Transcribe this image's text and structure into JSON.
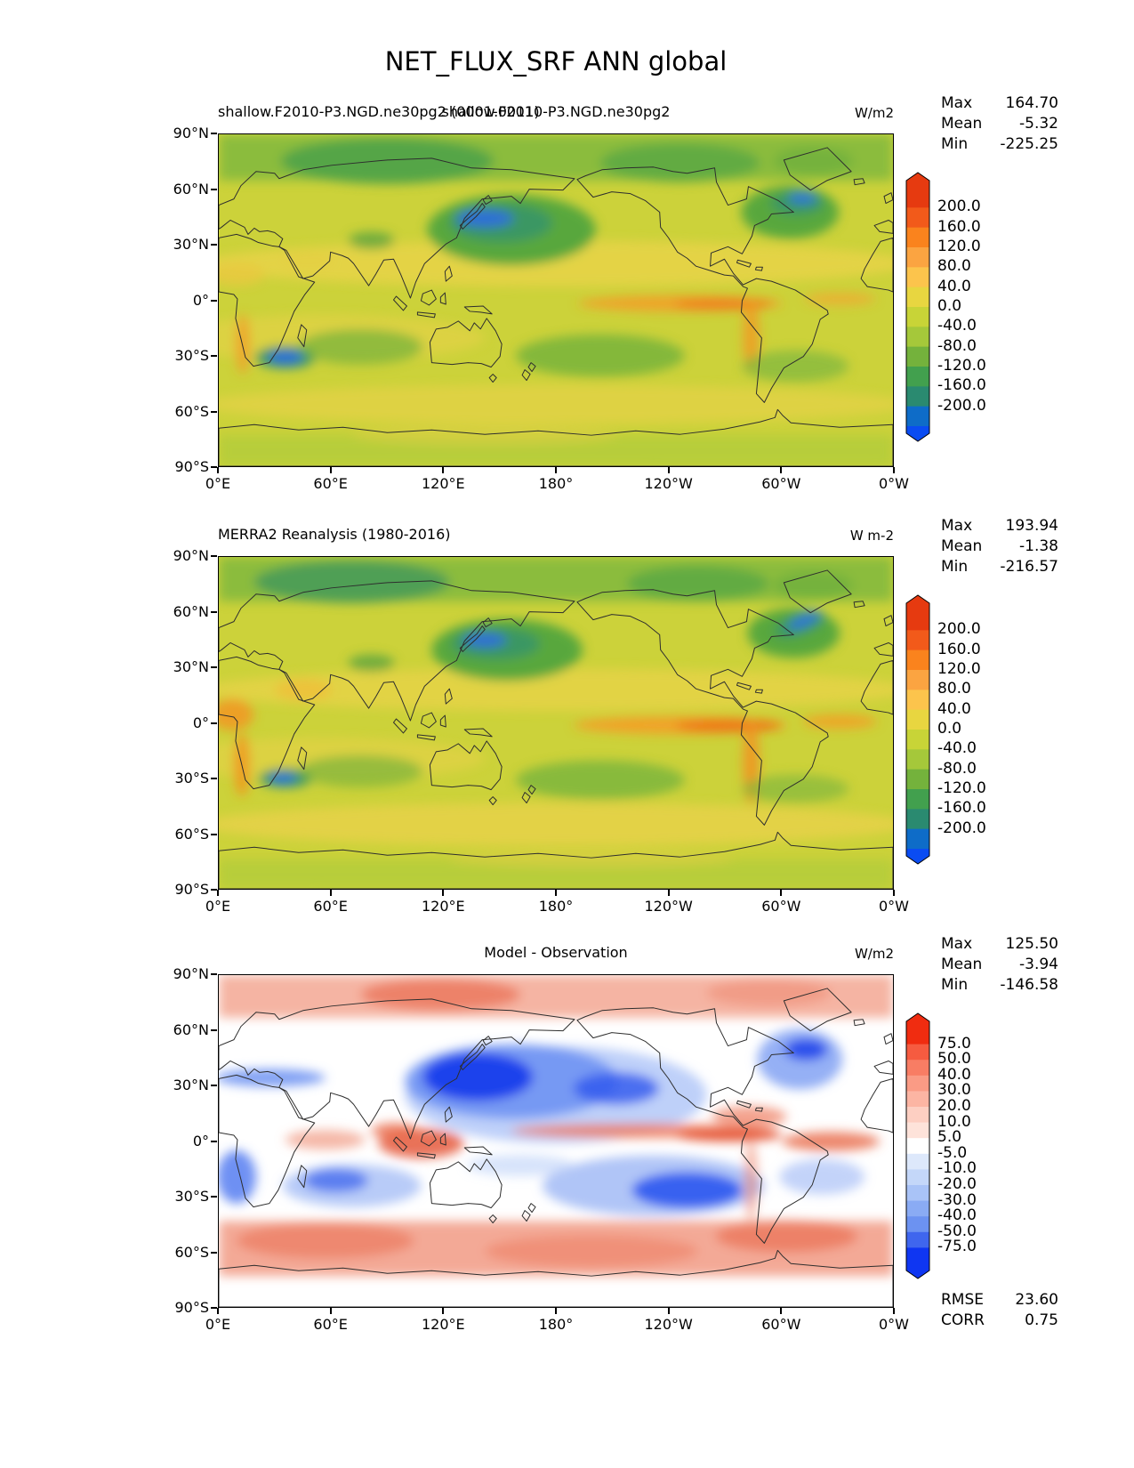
{
  "figure": {
    "background": "#ffffff"
  },
  "chart_data": {
    "type": "heatmap",
    "title": "NET_FLUX_SRF ANN global",
    "variable": "NET_FLUX_SRF",
    "season": "ANN",
    "region": "global",
    "projection": "equirectangular, longitudes 0E-360E",
    "xticks": [
      "0°E",
      "60°E",
      "120°E",
      "180°",
      "120°W",
      "60°W",
      "0°W"
    ],
    "yticks": [
      "90°N",
      "60°N",
      "30°N",
      "0°",
      "30°S",
      "60°S",
      "90°S"
    ],
    "xrange_deg": [
      0,
      360
    ],
    "yrange_deg": [
      90,
      -90
    ],
    "panels": [
      {
        "name": "model",
        "left_title": "shallow.F2010-P3.NGD.ne30pg2 (0001-0011)",
        "center_title": "shallow.F2010-P3.NGD.ne30pg2",
        "units": "W/m2",
        "stats": [
          {
            "label": "Max",
            "value": "164.70"
          },
          {
            "label": "Mean",
            "value": "-5.32"
          },
          {
            "label": "Min",
            "value": "-225.25"
          }
        ],
        "colorbar": {
          "tick_labels_top_to_bottom": [
            "200.0",
            "160.0",
            "120.0",
            "80.0",
            "40.0",
            "0.0",
            "-40.0",
            "-80.0",
            "-120.0",
            "-160.0",
            "-200.0"
          ],
          "band_colors_top_to_bottom": [
            "#e63a10",
            "#f25a1a",
            "#fa831d",
            "#fba441",
            "#fcc44c",
            "#e8d640",
            "#c8d437",
            "#a5c83a",
            "#74b23c",
            "#42a04e",
            "#2a8a70",
            "#0e6cc8"
          ],
          "arrow_top_color": "#e63a10",
          "arrow_bottom_color": "#0a4cf2"
        },
        "pattern_notes": "net surface flux: olive/yellow tropics-subtropics, green mid-high latitude oceans, blue minima in Kuroshio and Gulf Stream and Agulhas, orange maxima along eastern equatorial Pacific and Peru/Namibia coasts"
      },
      {
        "name": "observation",
        "left_title": "MERRA2 Reanalysis (1980-2016)",
        "center_title": "",
        "units": "W m-2",
        "stats": [
          {
            "label": "Max",
            "value": "193.94"
          },
          {
            "label": "Mean",
            "value": "-1.38"
          },
          {
            "label": "Min",
            "value": "-216.57"
          }
        ],
        "colorbar": {
          "tick_labels_top_to_bottom": [
            "200.0",
            "160.0",
            "120.0",
            "80.0",
            "40.0",
            "0.0",
            "-40.0",
            "-80.0",
            "-120.0",
            "-160.0",
            "-200.0"
          ],
          "band_colors_top_to_bottom": [
            "#e63a10",
            "#f25a1a",
            "#fa831d",
            "#fba441",
            "#fcc44c",
            "#e8d640",
            "#c8d437",
            "#a5c83a",
            "#74b23c",
            "#42a04e",
            "#2a8a70",
            "#0e6cc8"
          ],
          "arrow_top_color": "#e63a10",
          "arrow_bottom_color": "#0a4cf2"
        },
        "pattern_notes": "similar pattern to model: blue Kuroshio/Gulf Stream minima, orange equatorial east Pacific and African/South American west coast maxima, yellow subtropical bands"
      },
      {
        "name": "difference",
        "left_title": "",
        "center_title": "Model - Observation",
        "units": "W/m2",
        "stats": [
          {
            "label": "Max",
            "value": "125.50"
          },
          {
            "label": "Mean",
            "value": "-3.94"
          },
          {
            "label": "Min",
            "value": "-146.58"
          }
        ],
        "colorbar": {
          "tick_labels_top_to_bottom": [
            "75.0",
            "50.0",
            "40.0",
            "30.0",
            "20.0",
            "10.0",
            "5.0",
            "-5.0",
            "-10.0",
            "-20.0",
            "-30.0",
            "-40.0",
            "-50.0",
            "-75.0"
          ],
          "band_colors_top_to_bottom": [
            "#f02c10",
            "#f65b40",
            "#f87d64",
            "#fa9b85",
            "#fcb5a3",
            "#fdcfc2",
            "#fee3da",
            "#ffffff",
            "#dde8fb",
            "#c4d7f9",
            "#a9c3f7",
            "#8aabf4",
            "#6c92f1",
            "#3f66ee",
            "#0f36f2"
          ],
          "arrow_top_color": "#f02c10",
          "arrow_bottom_color": "#0f36f2"
        },
        "extra_stats": [
          {
            "label": "RMSE",
            "value": "23.60"
          },
          {
            "label": "CORR",
            "value": "0.75"
          }
        ],
        "pattern_notes": "white over land, strong blue bias North Pacific and subtropical South Pacific/South Indian and Namibia coast, red bias Southern Ocean, Arctic, ITCZ band, maritime continent and tropical Atlantic"
      }
    ]
  }
}
